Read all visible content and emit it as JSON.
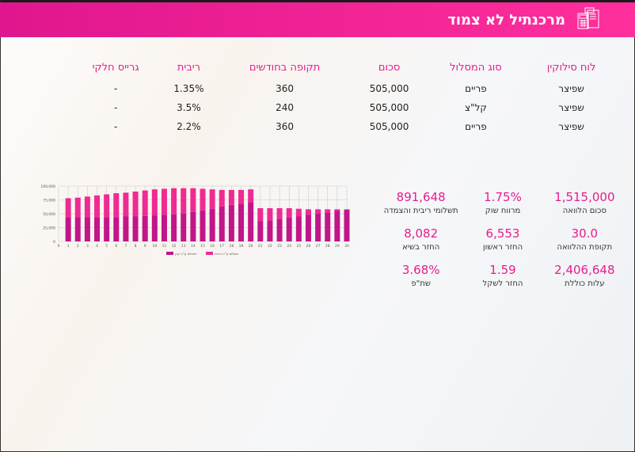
{
  "header": {
    "title": "מרכנתיל לא צמוד",
    "icon": "calculator-document-icon"
  },
  "table": {
    "headers": [
      "לוח סילוקין",
      "סוג המסלול",
      "סכום",
      "תקופה בחודשים",
      "ריבית",
      "גרייס חלקי"
    ],
    "rows": [
      [
        "שפיצר",
        "פריים",
        "505,000",
        "360",
        "1.35%",
        "-"
      ],
      [
        "שפיצר",
        "קל\"צ",
        "505,000",
        "240",
        "3.5%",
        "-"
      ],
      [
        "שפיצר",
        "פריים",
        "505,000",
        "360",
        "2.2%",
        "-"
      ]
    ]
  },
  "stats": [
    {
      "value": "1,515,000",
      "label": "סכום הלוואה"
    },
    {
      "value": "1.75%",
      "label": "מרווח שוק"
    },
    {
      "value": "891,648",
      "label": "תשלומי ריבית והצמדה"
    },
    {
      "value": "30.0",
      "label": "תקופת ההלוואה"
    },
    {
      "value": "6,553",
      "label": "החזר ראשון"
    },
    {
      "value": "8,082",
      "label": "החזר בשיא"
    },
    {
      "value": "2,406,648",
      "label": "עלות כוללת"
    },
    {
      "value": "1.59",
      "label": "החזר לשקל"
    },
    {
      "value": "3.68%",
      "label": "שת\"פ"
    }
  ],
  "chart_data": {
    "type": "bar",
    "stacked": true,
    "categories": [
      1,
      2,
      3,
      4,
      5,
      6,
      7,
      8,
      9,
      10,
      11,
      12,
      13,
      14,
      15,
      16,
      17,
      18,
      19,
      20,
      21,
      22,
      23,
      24,
      25,
      26,
      27,
      28,
      29,
      30
    ],
    "xticks": [
      0,
      1,
      2,
      3,
      4,
      5,
      6,
      7,
      8,
      9,
      10,
      11,
      12,
      13,
      14,
      15,
      16,
      17,
      18,
      19,
      20,
      21,
      22,
      23,
      24,
      25,
      26,
      27,
      28,
      29,
      30
    ],
    "yticks": [
      "0",
      "25,000",
      "50,000",
      "75,000",
      "100,000"
    ],
    "ylim": [
      0,
      100000
    ],
    "series": [
      {
        "name": "תשלום ע\"ח קרן",
        "color": "#c0168a",
        "values": [
          44000,
          44000,
          44000,
          44000,
          44000,
          44000,
          45000,
          45000,
          46000,
          47000,
          48000,
          49000,
          51000,
          53000,
          56000,
          59000,
          63000,
          66000,
          68000,
          71000,
          37000,
          38000,
          41000,
          43000,
          45000,
          48000,
          50000,
          52000,
          55000,
          57000
        ]
      },
      {
        "name": "תשלום ע\"ח ריבית",
        "color": "#ee2b92",
        "values": [
          34000,
          35000,
          37000,
          39000,
          41000,
          43000,
          43000,
          45000,
          46000,
          47000,
          47000,
          47000,
          45000,
          43000,
          39000,
          35000,
          30000,
          27000,
          25000,
          23000,
          23000,
          22000,
          19000,
          17000,
          14000,
          10000,
          8000,
          6000,
          3000,
          1000
        ]
      }
    ],
    "legend": "bottom"
  }
}
